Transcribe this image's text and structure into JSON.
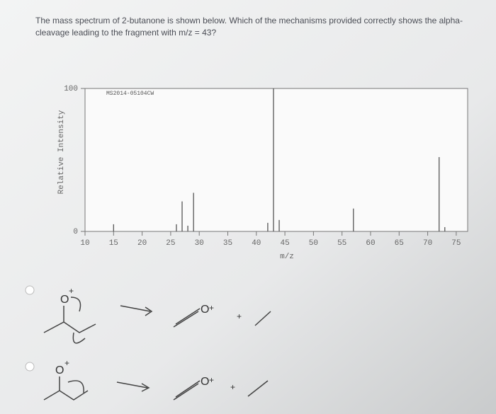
{
  "question": {
    "line1": "The mass spectrum of 2-butanone is shown below. Which of the mechanisms provided correctly shows the alpha-",
    "line2": "cleavage leading to the fragment with m/z = 43?"
  },
  "chart_data": {
    "type": "bar",
    "title": "MS2014-05104CW",
    "x_label": "m/z",
    "y_label": "Relative Intensity",
    "x": [
      15,
      26,
      27,
      28,
      29,
      42,
      43,
      44,
      57,
      72,
      73
    ],
    "values": [
      5,
      5,
      21,
      4,
      27,
      6,
      100,
      8,
      16,
      52,
      3
    ],
    "color": "#555555",
    "xlim": [
      10,
      77
    ],
    "xticks": [
      10,
      15,
      20,
      25,
      30,
      35,
      40,
      45,
      50,
      55,
      60,
      65,
      70,
      75
    ],
    "ylim": [
      0,
      100
    ],
    "yticks": [
      0,
      100
    ]
  },
  "options": [
    {
      "oxygen": "O",
      "charge": "+",
      "product_oxygen": "O",
      "product_charge": "+",
      "plus": "+"
    },
    {
      "oxygen": "O",
      "charge": "+",
      "product_oxygen": "O",
      "product_charge": "+",
      "plus": "+"
    }
  ]
}
